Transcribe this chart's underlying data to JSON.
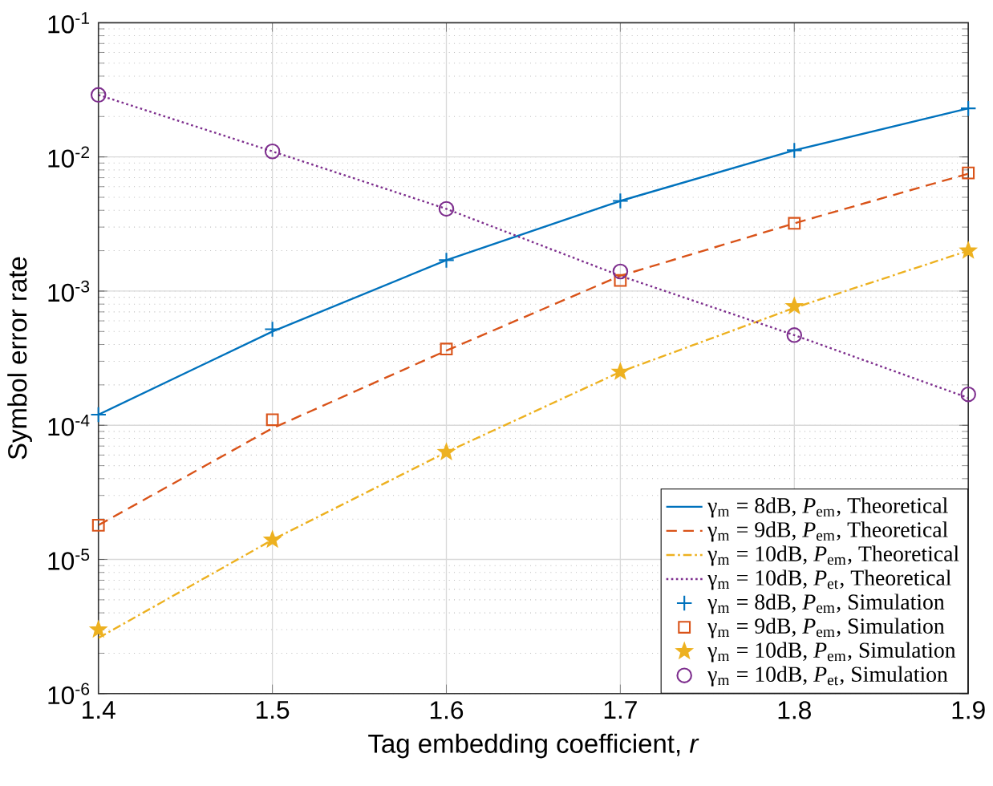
{
  "chart_data": {
    "type": "line",
    "xlabel": "Tag embedding coefficient, *r*",
    "ylabel": "Symbol error rate",
    "x": [
      1.4,
      1.5,
      1.6,
      1.7,
      1.8,
      1.9
    ],
    "series": [
      {
        "name": "γ$_{m}$ = 8dB, *P*$_{em}$, Theoretical",
        "type": "line",
        "line_style": "solid",
        "color": "#0072bd",
        "values": [
          0.00012,
          0.0005,
          0.0017,
          0.0047,
          0.0112,
          0.023
        ]
      },
      {
        "name": "γ$_{m}$ = 9dB, *P*$_{em}$, Theoretical",
        "type": "line",
        "line_style": "dashed",
        "color": "#d95319",
        "values": [
          1.8e-05,
          9.5e-05,
          0.00036,
          0.0013,
          0.0032,
          0.0075
        ]
      },
      {
        "name": "γ$_{m}$ = 10dB, *P*$_{em}$, Theoretical",
        "type": "line",
        "line_style": "dashdot",
        "color": "#edb120",
        "values": [
          2.6e-06,
          1.4e-05,
          6.3e-05,
          0.00025,
          0.00075,
          0.002
        ]
      },
      {
        "name": "γ$_{m}$ = 10dB, *P*$_{et}$, Theoretical",
        "type": "line",
        "line_style": "dotted",
        "color": "#7e2f8e",
        "values": [
          0.029,
          0.011,
          0.0041,
          0.0013,
          0.00047,
          0.00016
        ]
      },
      {
        "name": "γ$_{m}$ = 8dB, *P*$_{em}$, Simulation",
        "type": "scatter",
        "marker": "cross",
        "color": "#0072bd",
        "values": [
          0.00012,
          0.00052,
          0.0017,
          0.0047,
          0.0112,
          0.023
        ]
      },
      {
        "name": "γ$_{m}$ = 9dB, *P*$_{em}$, Simulation",
        "type": "scatter",
        "marker": "square",
        "color": "#d95319",
        "values": [
          1.8e-05,
          0.00011,
          0.00037,
          0.0012,
          0.0032,
          0.0076
        ]
      },
      {
        "name": "γ$_{m}$ = 10dB, *P*$_{em}$, Simulation",
        "type": "scatter",
        "marker": "star",
        "color": "#edb120",
        "values": [
          3e-06,
          1.4e-05,
          6.3e-05,
          0.00025,
          0.00077,
          0.002
        ]
      },
      {
        "name": "γ$_{m}$ = 10dB, *P*$_{et}$, Simulation",
        "type": "scatter",
        "marker": "circle",
        "color": "#7e2f8e",
        "values": [
          0.029,
          0.011,
          0.0041,
          0.0014,
          0.00047,
          0.00017
        ]
      }
    ],
    "xlim": [
      1.4,
      1.9
    ],
    "xticks": [
      1.4,
      1.5,
      1.6,
      1.7,
      1.8,
      1.9
    ],
    "ylim": [
      1e-06,
      0.1
    ],
    "yticks": [
      {
        "value": 1e-06,
        "label": "10$^{-6}$"
      },
      {
        "value": 1e-05,
        "label": "10$^{-5}$"
      },
      {
        "value": 0.0001,
        "label": "10$^{-4}$"
      },
      {
        "value": 0.001,
        "label": "10$^{-3}$"
      },
      {
        "value": 0.01,
        "label": "10$^{-2}$"
      },
      {
        "value": 0.1,
        "label": "10$^{-1}$"
      }
    ],
    "log": "y",
    "grid": true,
    "legend": "bottom right"
  }
}
